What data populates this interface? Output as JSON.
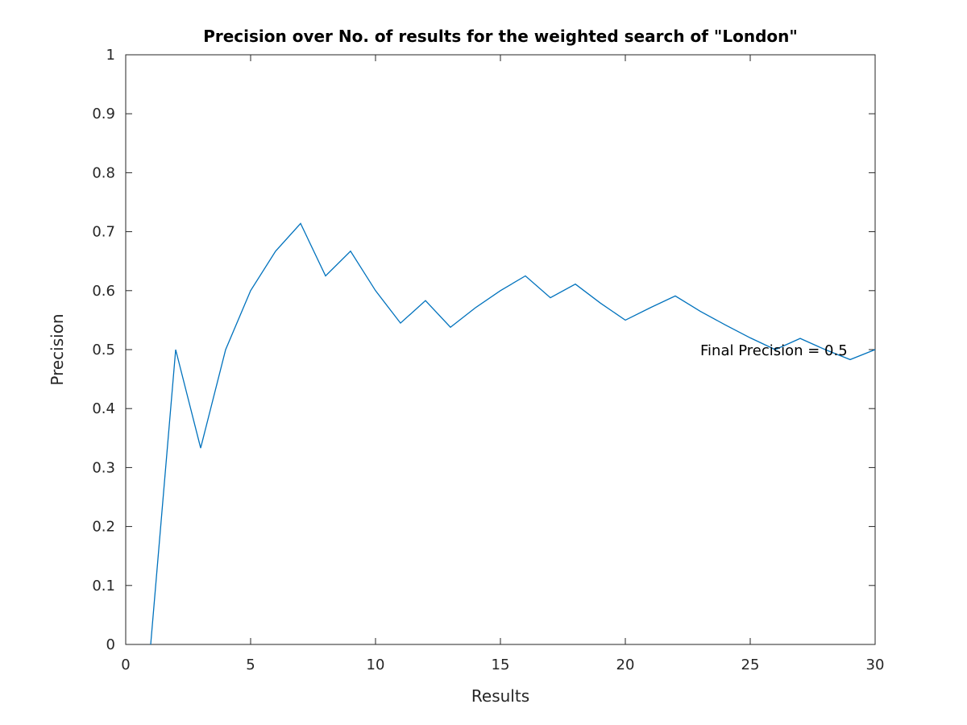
{
  "chart_data": {
    "type": "line",
    "title": "Precision over No. of results for the weighted search of \"London\"",
    "xlabel": "Results",
    "ylabel": "Precision",
    "xlim": [
      0,
      30
    ],
    "ylim": [
      0,
      1
    ],
    "xticks": [
      0,
      5,
      10,
      15,
      20,
      25,
      30
    ],
    "yticks": [
      0,
      0.1,
      0.2,
      0.3,
      0.4,
      0.5,
      0.6,
      0.7,
      0.8,
      0.9,
      1
    ],
    "ytick_labels": [
      "0",
      "0.1",
      "0.2",
      "0.3",
      "0.4",
      "0.5",
      "0.6",
      "0.7",
      "0.8",
      "0.9",
      "1"
    ],
    "grid": false,
    "series": [
      {
        "color": "#0072bd",
        "x": [
          1,
          2,
          3,
          4,
          5,
          6,
          7,
          8,
          9,
          10,
          11,
          12,
          13,
          14,
          15,
          16,
          17,
          18,
          19,
          20,
          21,
          22,
          23,
          24,
          25,
          26,
          27,
          28,
          29,
          30
        ],
        "y": [
          0,
          0.5,
          0.333,
          0.5,
          0.6,
          0.667,
          0.714,
          0.625,
          0.667,
          0.6,
          0.545,
          0.583,
          0.538,
          0.571,
          0.6,
          0.625,
          0.588,
          0.611,
          0.579,
          0.55,
          0.571,
          0.591,
          0.565,
          0.542,
          0.52,
          0.5,
          0.519,
          0.5,
          0.483,
          0.5
        ]
      }
    ],
    "annotations": [
      {
        "text": "Final Precision = 0.5",
        "x": 23,
        "y": 0.5
      }
    ]
  }
}
